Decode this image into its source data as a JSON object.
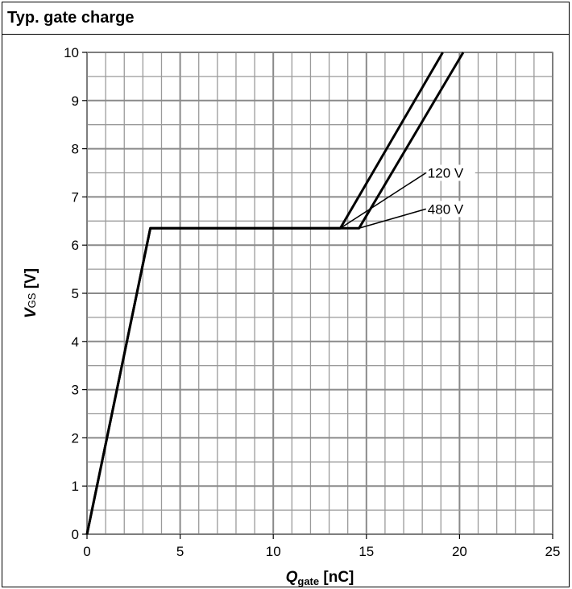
{
  "header": {
    "title": "Typ. gate charge"
  },
  "chart_data": {
    "type": "line",
    "title": "Typ. gate charge",
    "xlabel": {
      "main": "Q",
      "sub": "gate",
      "unit": " [nC]"
    },
    "ylabel": {
      "main": "V",
      "sub": "GS",
      "unit": " [V]"
    },
    "xlim": [
      0,
      25
    ],
    "ylim": [
      0,
      10
    ],
    "xticks": [
      0,
      5,
      10,
      15,
      20,
      25
    ],
    "yticks": [
      0,
      1,
      2,
      3,
      4,
      5,
      6,
      7,
      8,
      9,
      10
    ],
    "grid": true,
    "series": [
      {
        "name": "120 V",
        "x": [
          0,
          3.4,
          13.6,
          19.1
        ],
        "y": [
          0,
          6.35,
          6.35,
          10
        ]
      },
      {
        "name": "480 V",
        "x": [
          0,
          3.4,
          14.6,
          20.2
        ],
        "y": [
          0,
          6.35,
          6.35,
          10
        ]
      }
    ],
    "annotations": [
      {
        "text": "120 V",
        "target": [
          13.6,
          6.35
        ],
        "label_at": [
          18.2,
          7.5
        ]
      },
      {
        "text": "480 V",
        "target": [
          14.6,
          6.35
        ],
        "label_at": [
          18.2,
          6.75
        ]
      }
    ]
  }
}
